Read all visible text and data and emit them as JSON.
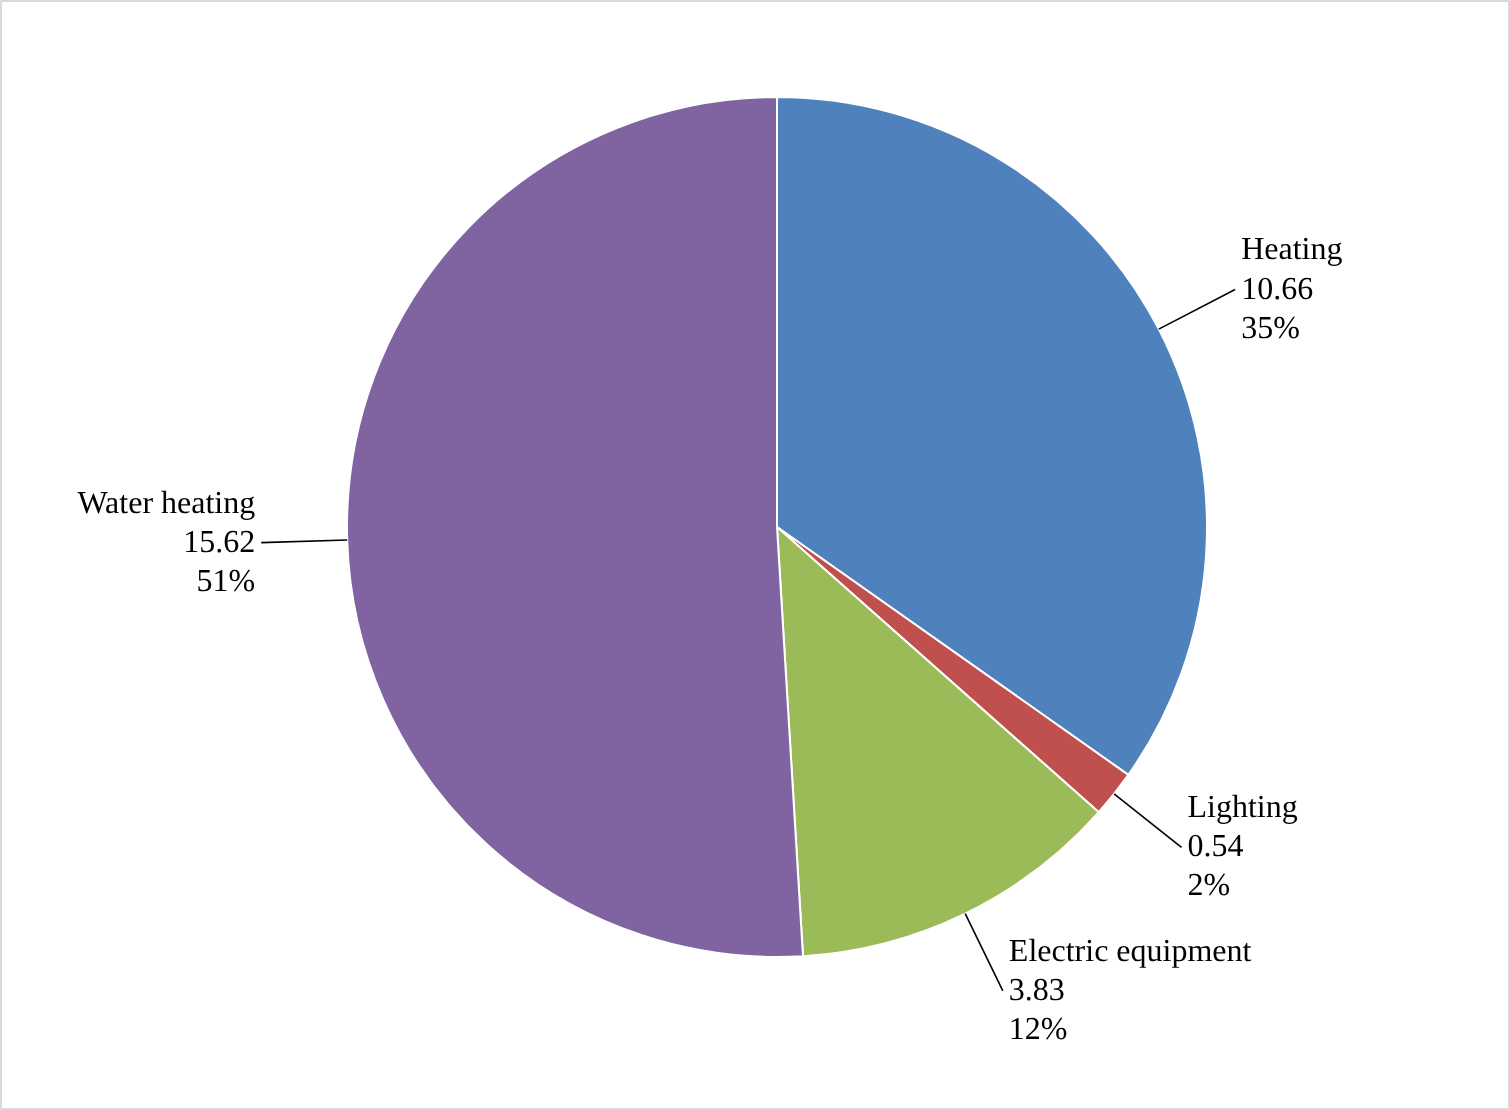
{
  "chart_data": {
    "type": "pie",
    "categories": [
      "Heating",
      "Lighting",
      "Electric equipment",
      "Water heating"
    ],
    "values": [
      10.66,
      0.54,
      3.83,
      15.62
    ],
    "value_labels": [
      "10.66\n35%",
      "0.54\n2%",
      "3.83\n12%",
      "15.62\n51%"
    ],
    "colors": [
      "#4f81bd",
      "#c0504d",
      "#9bbb59",
      "#8064a2"
    ],
    "legend": false
  }
}
